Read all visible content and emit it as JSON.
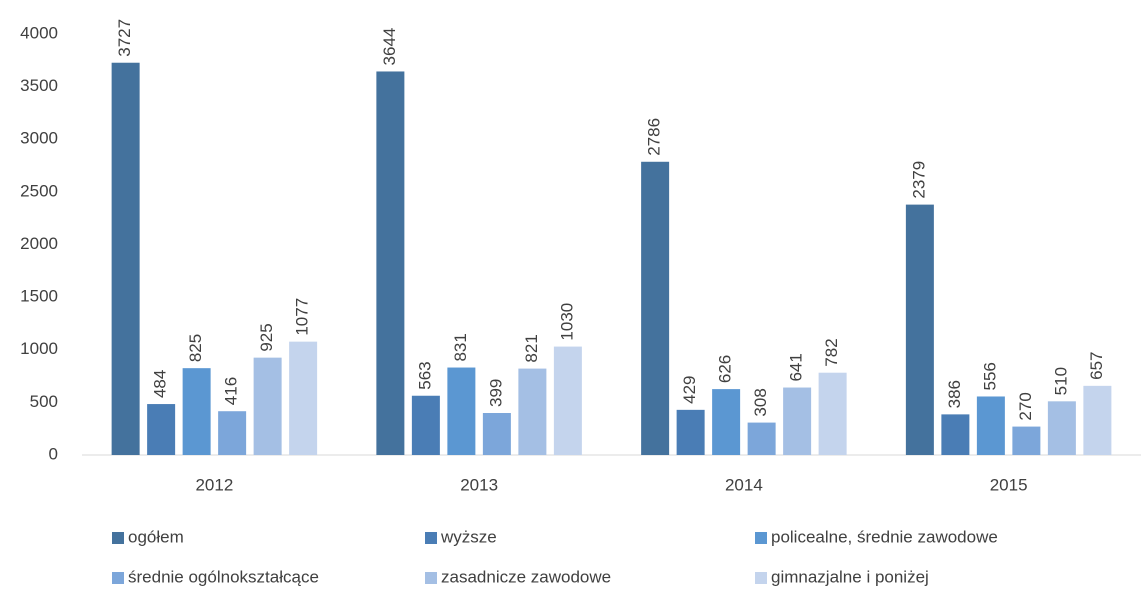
{
  "chart_data": {
    "type": "bar",
    "categories": [
      "2012",
      "2013",
      "2014",
      "2015"
    ],
    "series": [
      {
        "name": "ogółem",
        "color": "#44729d",
        "values": [
          3727,
          3644,
          2786,
          2379
        ]
      },
      {
        "name": "wyższe",
        "color": "#4a7db5",
        "values": [
          484,
          563,
          429,
          386
        ]
      },
      {
        "name": "policealne, średnie zawodowe",
        "color": "#5b97d2",
        "values": [
          825,
          831,
          626,
          556
        ]
      },
      {
        "name": "średnie ogólnokształcące",
        "color": "#7ca6da",
        "values": [
          416,
          399,
          308,
          270
        ]
      },
      {
        "name": "zasadnicze zawodowe",
        "color": "#a4bfe4",
        "values": [
          925,
          821,
          641,
          510
        ]
      },
      {
        "name": "gimnazjalne i poniżej",
        "color": "#c4d4ed",
        "values": [
          1077,
          1030,
          782,
          657
        ]
      }
    ],
    "ylim": [
      0,
      4000
    ],
    "yticks": [
      0,
      500,
      1000,
      1500,
      2000,
      2500,
      3000,
      3500,
      4000
    ],
    "grid": false,
    "legend": "bottom"
  }
}
